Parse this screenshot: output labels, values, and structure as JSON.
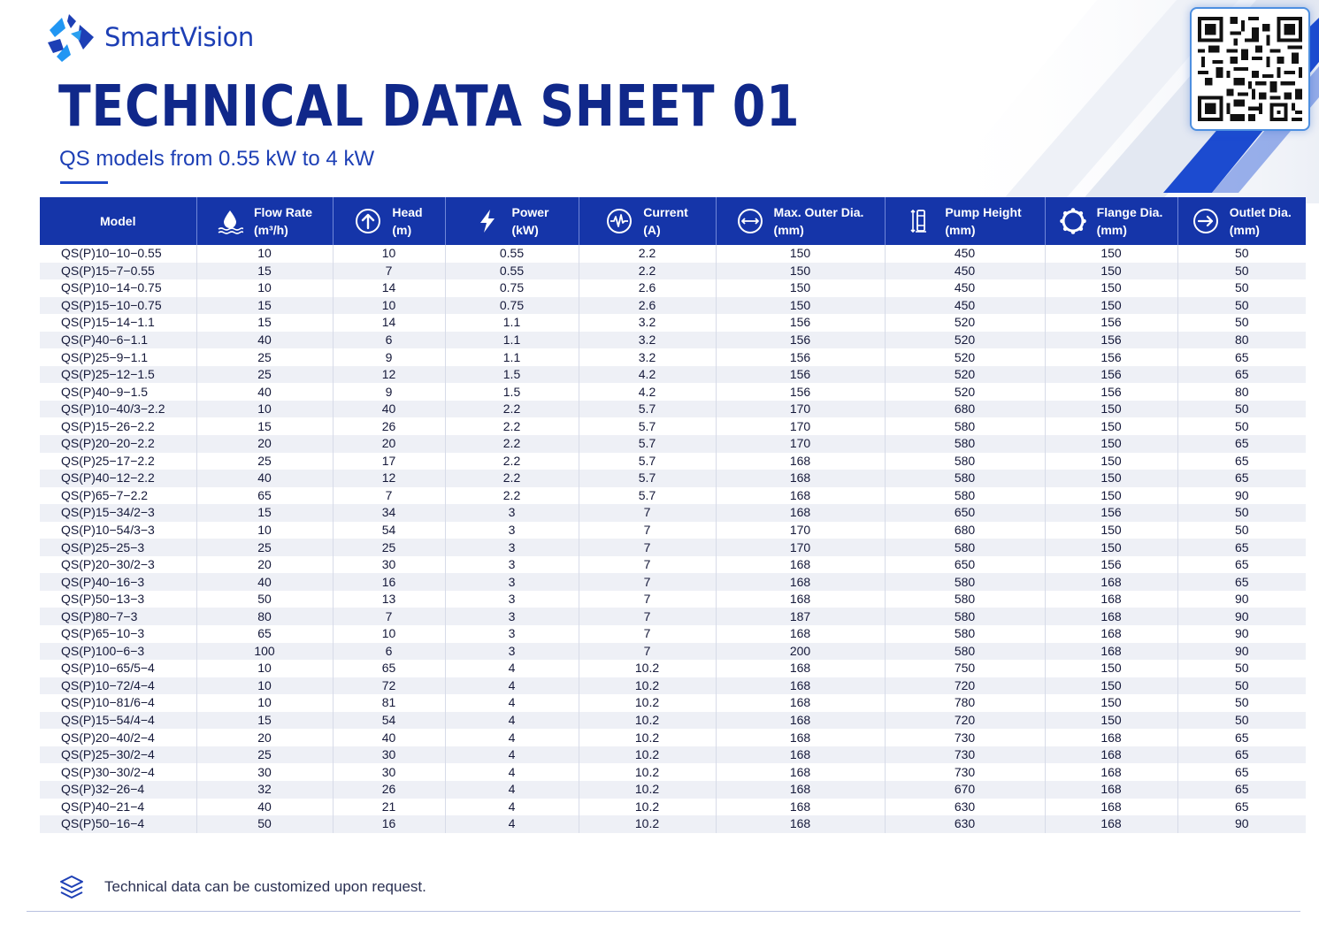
{
  "brand": {
    "name": "SmartVision"
  },
  "header": {
    "title": "TECHNICAL DATA SHEET 01",
    "subtitle": "QS models from 0.55 kW to 4 kW"
  },
  "colors": {
    "primary": "#1535a9",
    "accent": "#1d46c6",
    "row_alt": "#eef0f6"
  },
  "table": {
    "columns": [
      {
        "key": "model",
        "label": "Model",
        "unit": "",
        "icon": ""
      },
      {
        "key": "flow",
        "label": "Flow Rate",
        "unit": "(m³/h)",
        "icon": "water-drop-icon"
      },
      {
        "key": "head",
        "label": "Head",
        "unit": "(m)",
        "icon": "arrow-up-circle-icon"
      },
      {
        "key": "power",
        "label": "Power",
        "unit": "(kW)",
        "icon": "lightning-bolt-icon"
      },
      {
        "key": "current",
        "label": "Current",
        "unit": "(A)",
        "icon": "waveform-circle-icon"
      },
      {
        "key": "outer",
        "label": "Max. Outer Dia.",
        "unit": "(mm)",
        "icon": "diameter-icon"
      },
      {
        "key": "height",
        "label": "Pump Height",
        "unit": "(mm)",
        "icon": "pump-height-icon"
      },
      {
        "key": "flange",
        "label": "Flange Dia.",
        "unit": "(mm)",
        "icon": "flange-icon"
      },
      {
        "key": "outlet",
        "label": "Outlet Dia.",
        "unit": "(mm)",
        "icon": "outlet-arrow-icon"
      }
    ],
    "rows": [
      [
        "QS(P)10−10−0.55",
        "10",
        "10",
        "0.55",
        "2.2",
        "150",
        "450",
        "150",
        "50"
      ],
      [
        "QS(P)15−7−0.55",
        "15",
        "7",
        "0.55",
        "2.2",
        "150",
        "450",
        "150",
        "50"
      ],
      [
        "QS(P)10−14−0.75",
        "10",
        "14",
        "0.75",
        "2.6",
        "150",
        "450",
        "150",
        "50"
      ],
      [
        "QS(P)15−10−0.75",
        "15",
        "10",
        "0.75",
        "2.6",
        "150",
        "450",
        "150",
        "50"
      ],
      [
        "QS(P)15−14−1.1",
        "15",
        "14",
        "1.1",
        "3.2",
        "156",
        "520",
        "156",
        "50"
      ],
      [
        "QS(P)40−6−1.1",
        "40",
        "6",
        "1.1",
        "3.2",
        "156",
        "520",
        "156",
        "80"
      ],
      [
        "QS(P)25−9−1.1",
        "25",
        "9",
        "1.1",
        "3.2",
        "156",
        "520",
        "156",
        "65"
      ],
      [
        "QS(P)25−12−1.5",
        "25",
        "12",
        "1.5",
        "4.2",
        "156",
        "520",
        "156",
        "65"
      ],
      [
        "QS(P)40−9−1.5",
        "40",
        "9",
        "1.5",
        "4.2",
        "156",
        "520",
        "156",
        "80"
      ],
      [
        "QS(P)10−40/3−2.2",
        "10",
        "40",
        "2.2",
        "5.7",
        "170",
        "680",
        "150",
        "50"
      ],
      [
        "QS(P)15−26−2.2",
        "15",
        "26",
        "2.2",
        "5.7",
        "170",
        "580",
        "150",
        "50"
      ],
      [
        "QS(P)20−20−2.2",
        "20",
        "20",
        "2.2",
        "5.7",
        "170",
        "580",
        "150",
        "65"
      ],
      [
        "QS(P)25−17−2.2",
        "25",
        "17",
        "2.2",
        "5.7",
        "168",
        "580",
        "150",
        "65"
      ],
      [
        "QS(P)40−12−2.2",
        "40",
        "12",
        "2.2",
        "5.7",
        "168",
        "580",
        "150",
        "65"
      ],
      [
        "QS(P)65−7−2.2",
        "65",
        "7",
        "2.2",
        "5.7",
        "168",
        "580",
        "150",
        "90"
      ],
      [
        "QS(P)15−34/2−3",
        "15",
        "34",
        "3",
        "7",
        "168",
        "650",
        "156",
        "50"
      ],
      [
        "QS(P)10−54/3−3",
        "10",
        "54",
        "3",
        "7",
        "170",
        "680",
        "150",
        "50"
      ],
      [
        "QS(P)25−25−3",
        "25",
        "25",
        "3",
        "7",
        "170",
        "580",
        "150",
        "65"
      ],
      [
        "QS(P)20−30/2−3",
        "20",
        "30",
        "3",
        "7",
        "168",
        "650",
        "156",
        "65"
      ],
      [
        "QS(P)40−16−3",
        "40",
        "16",
        "3",
        "7",
        "168",
        "580",
        "168",
        "65"
      ],
      [
        "QS(P)50−13−3",
        "50",
        "13",
        "3",
        "7",
        "168",
        "580",
        "168",
        "90"
      ],
      [
        "QS(P)80−7−3",
        "80",
        "7",
        "3",
        "7",
        "187",
        "580",
        "168",
        "90"
      ],
      [
        "QS(P)65−10−3",
        "65",
        "10",
        "3",
        "7",
        "168",
        "580",
        "168",
        "90"
      ],
      [
        "QS(P)100−6−3",
        "100",
        "6",
        "3",
        "7",
        "200",
        "580",
        "168",
        "90"
      ],
      [
        "QS(P)10−65/5−4",
        "10",
        "65",
        "4",
        "10.2",
        "168",
        "750",
        "150",
        "50"
      ],
      [
        "QS(P)10−72/4−4",
        "10",
        "72",
        "4",
        "10.2",
        "168",
        "720",
        "150",
        "50"
      ],
      [
        "QS(P)10−81/6−4",
        "10",
        "81",
        "4",
        "10.2",
        "168",
        "780",
        "150",
        "50"
      ],
      [
        "QS(P)15−54/4−4",
        "15",
        "54",
        "4",
        "10.2",
        "168",
        "720",
        "150",
        "50"
      ],
      [
        "QS(P)20−40/2−4",
        "20",
        "40",
        "4",
        "10.2",
        "168",
        "730",
        "168",
        "65"
      ],
      [
        "QS(P)25−30/2−4",
        "25",
        "30",
        "4",
        "10.2",
        "168",
        "730",
        "168",
        "65"
      ],
      [
        "QS(P)30−30/2−4",
        "30",
        "30",
        "4",
        "10.2",
        "168",
        "730",
        "168",
        "65"
      ],
      [
        "QS(P)32−26−4",
        "32",
        "26",
        "4",
        "10.2",
        "168",
        "670",
        "168",
        "65"
      ],
      [
        "QS(P)40−21−4",
        "40",
        "21",
        "4",
        "10.2",
        "168",
        "630",
        "168",
        "65"
      ],
      [
        "QS(P)50−16−4",
        "50",
        "16",
        "4",
        "10.2",
        "168",
        "630",
        "168",
        "90"
      ]
    ]
  },
  "footer": {
    "note": "Technical data can be customized upon request.",
    "icon": "layers-icon"
  }
}
